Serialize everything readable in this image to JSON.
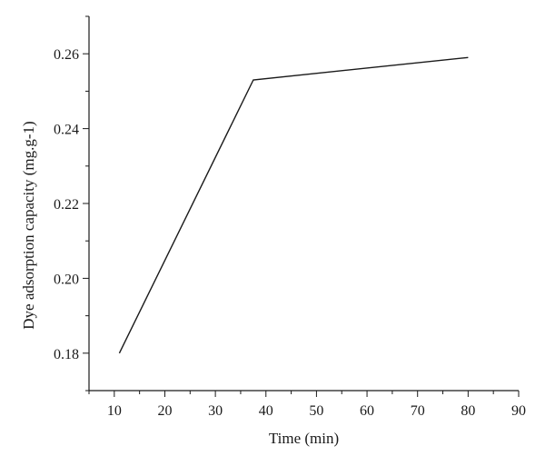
{
  "chart_data": {
    "type": "line",
    "title": "",
    "xlabel": "Time (min)",
    "ylabel": "Dye adsorption capacity (mg.g-1)",
    "xlim": [
      5,
      90
    ],
    "ylim": [
      0.17,
      0.27
    ],
    "x_major_ticks": [
      10,
      20,
      30,
      40,
      50,
      60,
      70,
      80,
      90
    ],
    "x_tick_labels": [
      "10",
      "20",
      "30",
      "40",
      "50",
      "60",
      "70",
      "80",
      "90"
    ],
    "x_minor_ticks": [
      5,
      15,
      25,
      35,
      45,
      55,
      65,
      75,
      85
    ],
    "y_major_ticks": [
      0.18,
      0.2,
      0.22,
      0.24,
      0.26
    ],
    "y_tick_labels": [
      "0.18",
      "0.20",
      "0.22",
      "0.24",
      "0.26"
    ],
    "y_minor_ticks": [
      0.17,
      0.19,
      0.21,
      0.23,
      0.25,
      0.27
    ],
    "grid": false,
    "legend": "none",
    "series": [
      {
        "color": "#1a1a1a",
        "x": [
          11,
          37.5,
          80
        ],
        "y": [
          0.18,
          0.253,
          0.259
        ]
      }
    ]
  }
}
